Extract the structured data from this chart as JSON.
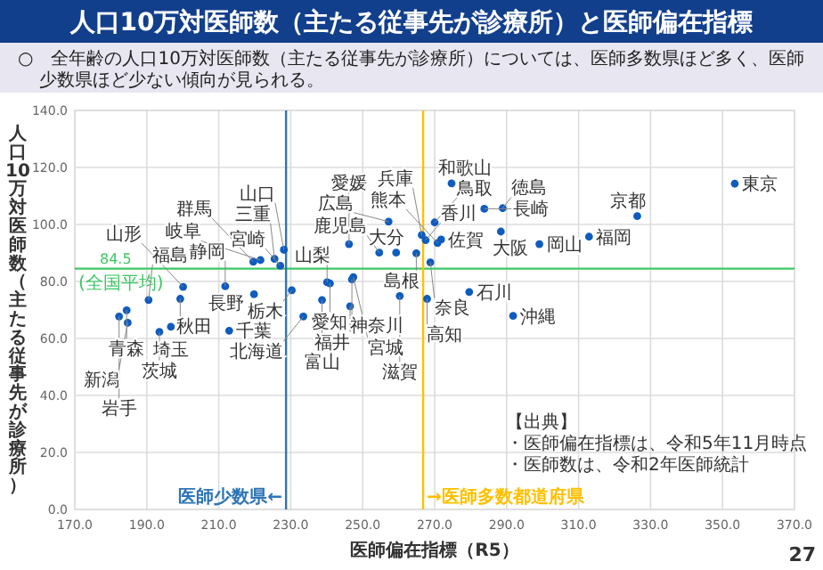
{
  "chart_data": {
    "type": "scatter",
    "title": "人口10万対医師数（主たる従事先が診療所）と医師偏在指標",
    "subtitle": "○　全年齢の人口10万対医師数（主たる従事先が診療所）については、医師多数県ほど多く、医師少数県ほど少ない傾向が見られる。",
    "xlabel": "医師偏在指標（R5）",
    "ylabel": "人口10万対医師数（主たる従事先が診療所）",
    "xlim": [
      170,
      370
    ],
    "ylim": [
      0,
      140
    ],
    "xticks": [
      {
        "value": 170,
        "label": "170.0"
      },
      {
        "value": 190,
        "label": "190.0"
      },
      {
        "value": 210,
        "label": "210.0"
      },
      {
        "value": 230,
        "label": "230.0"
      },
      {
        "value": 250,
        "label": "250.0"
      },
      {
        "value": 270,
        "label": "270.0"
      },
      {
        "value": 290,
        "label": "290.0"
      },
      {
        "value": 310,
        "label": "310.0"
      },
      {
        "value": 330,
        "label": "330.0"
      },
      {
        "value": 350,
        "label": "350.0"
      },
      {
        "value": 370,
        "label": "370.0"
      }
    ],
    "yticks": [
      {
        "value": 0,
        "label": "0.0"
      },
      {
        "value": 20,
        "label": "20.0"
      },
      {
        "value": 40,
        "label": "40.0"
      },
      {
        "value": 60,
        "label": "60.0"
      },
      {
        "value": 80,
        "label": "80.0"
      },
      {
        "value": 100,
        "label": "100.0"
      },
      {
        "value": 120,
        "label": "120.0"
      },
      {
        "value": 140,
        "label": "140.0"
      }
    ],
    "grid": true,
    "marker": "circle",
    "series": [
      {
        "color": "#0f5cbf",
        "x": [
          233.5,
          184.4,
          182.3,
          247.4,
          199.3,
          200.1,
          190.5,
          193.5,
          230.3,
          219.6,
          196.7,
          212.9,
          353.4,
          247.0,
          184.7,
          238.7,
          279.6,
          246.5,
          240.1,
          219.8,
          221.6,
          211.8,
          240.9,
          225.5,
          260.3,
          326.3,
          288.4,
          266.4,
          268.8,
          274.7,
          270.0,
          264.9,
          299.1,
          257.2,
          228.1,
          288.9,
          267.5,
          246.2,
          267.9,
          312.9,
          271.8,
          283.8,
          270.8,
          259.3,
          227.1,
          254.6,
          291.8
        ],
        "values": [
          67.7,
          69.9,
          67.7,
          81.5,
          73.9,
          78.1,
          73.5,
          62.3,
          76.9,
          86.9,
          64.1,
          62.7,
          114.3,
          80.7,
          65.5,
          73.5,
          76.3,
          71.3,
          79.7,
          75.5,
          87.5,
          78.3,
          79.3,
          87.9,
          74.9,
          102.9,
          97.5,
          96.3,
          86.7,
          114.4,
          100.7,
          89.9,
          93.1,
          101.0,
          91.1,
          105.7,
          94.5,
          93.1,
          73.9,
          95.7,
          94.7,
          105.5,
          93.5,
          90.1,
          85.5,
          90.1,
          67.9
        ],
        "value_labels": [
          "北海道",
          "青森",
          "岩手",
          "宮城",
          "秋田",
          "山形",
          "福島",
          "茨城",
          "栃木",
          "群馬",
          "埼玉",
          "千葉",
          "東京",
          "神奈川",
          "新潟",
          "富山",
          "石川",
          "福井",
          "山梨",
          "長野",
          "岐阜",
          "静岡",
          "愛知",
          "三重",
          "滋賀",
          "京都",
          "大阪",
          "兵庫",
          "奈良",
          "和歌山",
          "鳥取",
          "島根",
          "岡山",
          "広島",
          "山口",
          "徳島",
          "香川",
          "愛媛",
          "高知",
          "福岡",
          "佐賀",
          "長崎",
          "熊本",
          "大分",
          "宮崎",
          "鹿児島",
          "沖縄"
        ]
      }
    ],
    "ref_lines": [
      {
        "axis": "y",
        "value": 84.5,
        "label": "84.5",
        "color": "#3cc864"
      },
      {
        "axis": "x",
        "value": 228.7,
        "label": "医師少数県←",
        "color": "#2e75b6"
      },
      {
        "axis": "x",
        "value": 266.8,
        "label": "→医師多数都道府県",
        "color": "#ffc000"
      }
    ],
    "annotations": [
      "(全国平均)",
      "【出典】",
      "・医師偏在指標は、令和5年11月時点",
      "・医師数は、令和2年医師統計",
      "27"
    ]
  }
}
